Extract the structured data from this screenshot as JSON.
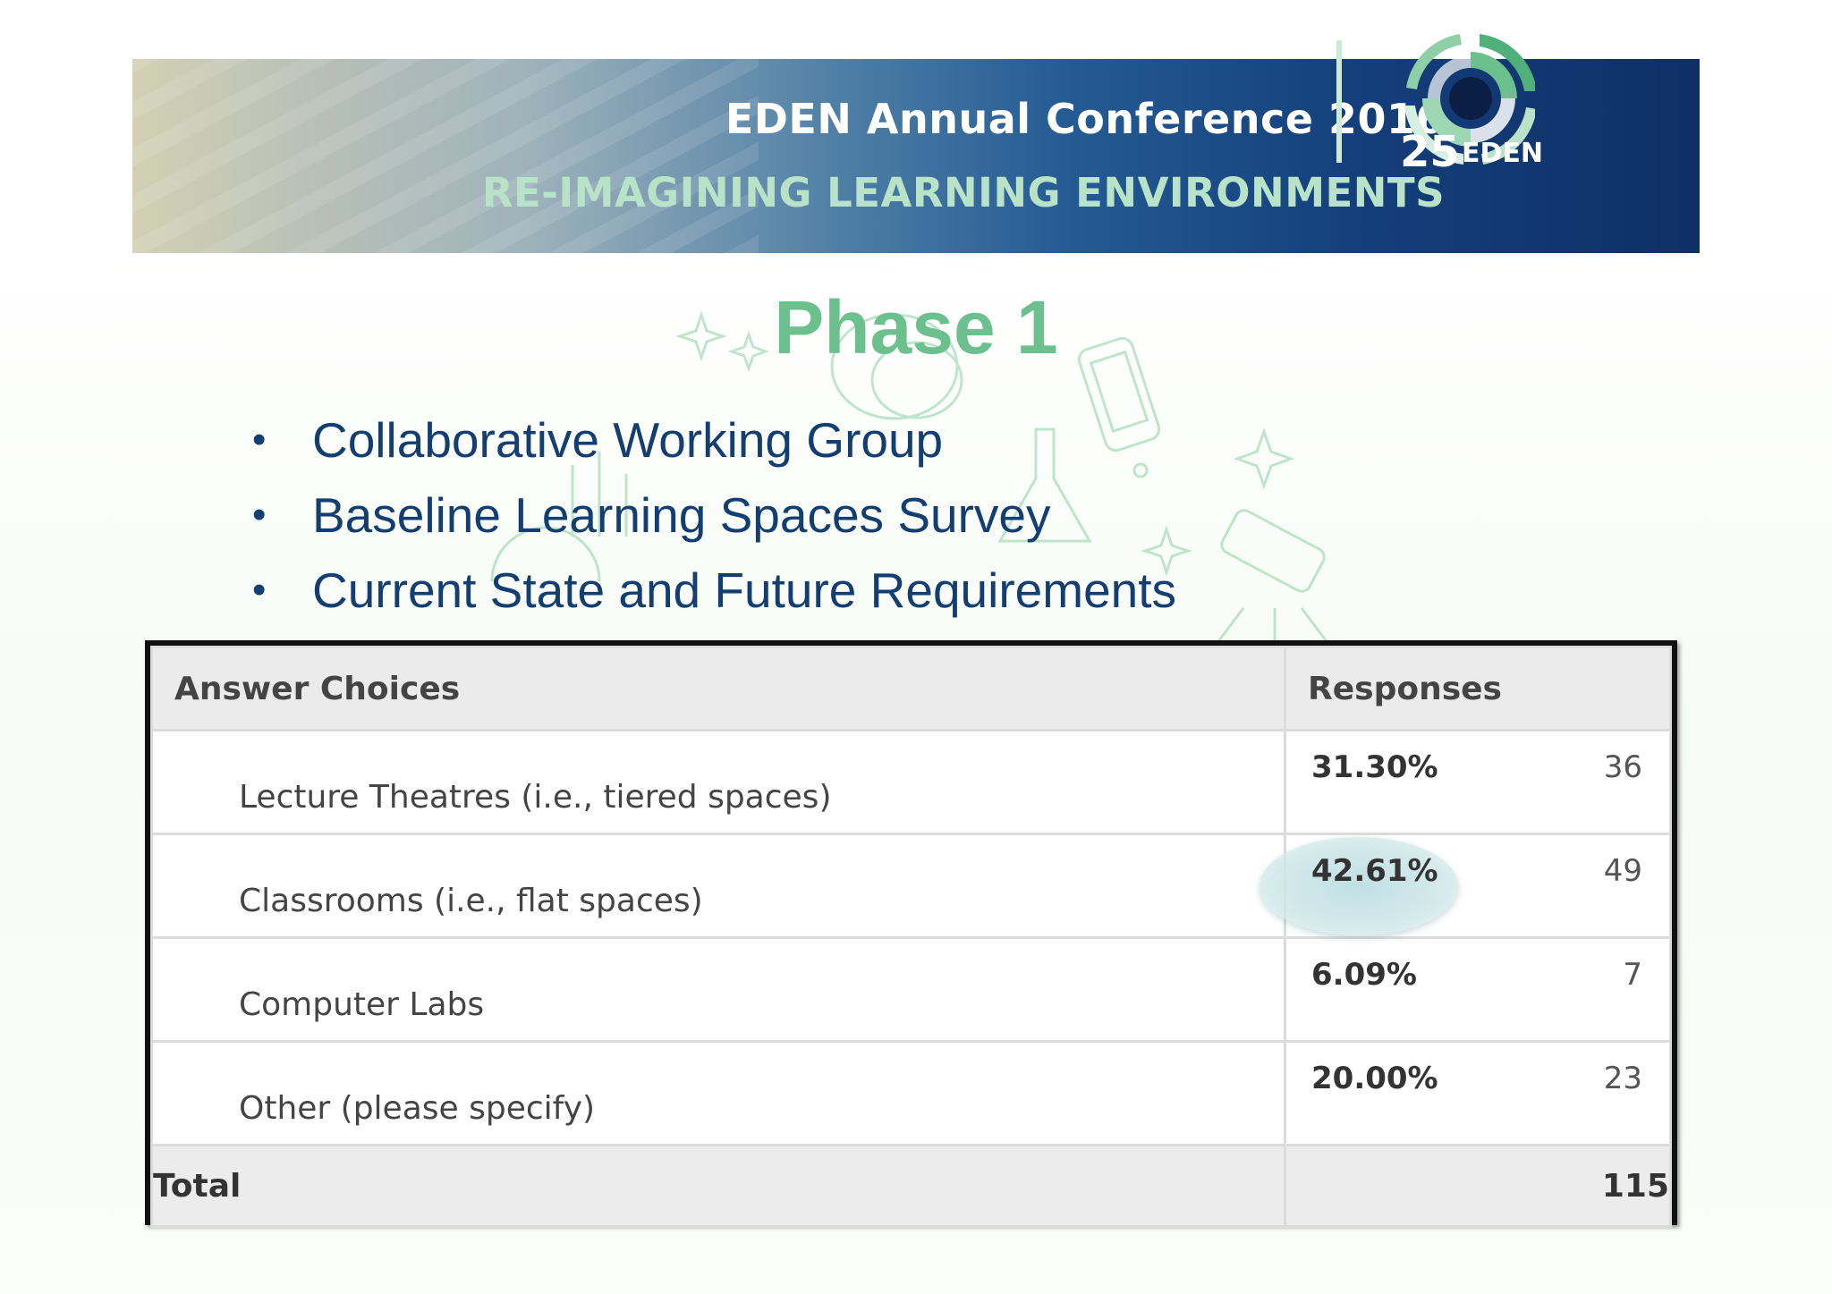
{
  "banner": {
    "title": "EDEN Annual Conference 2016",
    "subtitle": "RE-IMAGINING LEARNING ENVIRONMENTS",
    "logo_number": "25",
    "logo_text": "EDEN"
  },
  "slide": {
    "title": "Phase 1",
    "bullets": [
      "Collaborative Working Group",
      "Baseline Learning Spaces Survey",
      "Current State and Future Requirements"
    ],
    "bullet_glyph": "•"
  },
  "survey_table": {
    "headers": [
      "Answer Choices",
      "Responses"
    ],
    "rows": [
      {
        "choice": "Lecture Theatres (i.e., tiered spaces)",
        "percent": "31.30%",
        "count": "36"
      },
      {
        "choice": "Classrooms (i.e., flat spaces)",
        "percent": "42.61%",
        "count": "49",
        "highlighted": true
      },
      {
        "choice": "Computer Labs",
        "percent": "6.09%",
        "count": "7"
      },
      {
        "choice": "Other (please specify)",
        "percent": "20.00%",
        "count": "23"
      }
    ],
    "total_label": "Total",
    "total_value": "115"
  },
  "colors": {
    "title_green": "#6cc08e",
    "bullet_blue": "#123e72",
    "banner_navy": "#0f2f66",
    "highlight_teal": "#bedee2"
  }
}
